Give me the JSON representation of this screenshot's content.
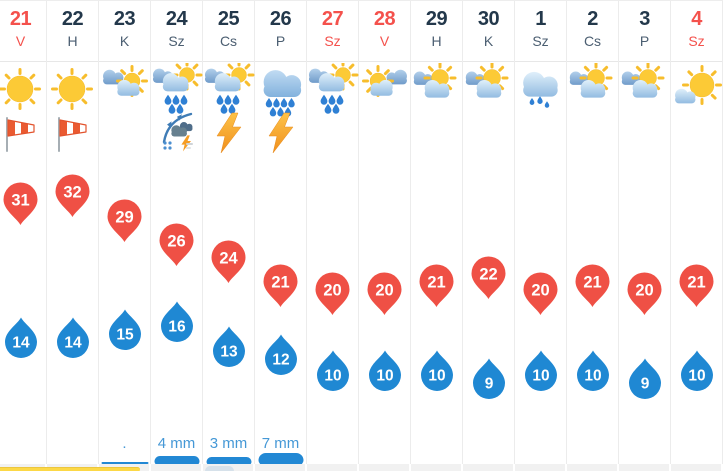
{
  "colors": {
    "accent_red": "#f4514c",
    "pin_red": "#ef5045",
    "pin_blue": "#1f88d3",
    "date_dark": "#23384b",
    "dow_grey": "#4b5e71",
    "precip_label_blue": "#4598d6",
    "precip_bar_blue": "#2288d4",
    "separator": "#ececec",
    "strip_grey": "#f1f1f1",
    "sunshine_bar_yellow": "#fcd846"
  },
  "days": [
    {
      "date": "21",
      "dow": "V",
      "weekend": true,
      "icon": "sunny",
      "icon2": "windsock",
      "tmax": 31,
      "tmin": 14,
      "precip": null
    },
    {
      "date": "22",
      "dow": "H",
      "weekend": false,
      "icon": "sunny",
      "icon2": "windsock",
      "tmax": 32,
      "tmin": 14,
      "precip": null
    },
    {
      "date": "23",
      "dow": "K",
      "weekend": false,
      "icon": "sun-behind-clouds",
      "icon2": null,
      "tmax": 29,
      "tmin": 15,
      "precip": {
        "label": ".",
        "mm": 0.1
      }
    },
    {
      "date": "24",
      "dow": "Sz",
      "weekend": false,
      "icon": "rain-showers-sun",
      "icon2": "cold-front",
      "tmax": 26,
      "tmin": 16,
      "precip": {
        "label": "4 mm",
        "mm": 4
      }
    },
    {
      "date": "25",
      "dow": "Cs",
      "weekend": false,
      "icon": "rain-showers-sun",
      "icon2": "lightning",
      "tmax": 24,
      "tmin": 13,
      "precip": {
        "label": "3 mm",
        "mm": 3
      }
    },
    {
      "date": "26",
      "dow": "P",
      "weekend": false,
      "icon": "rain-heavy",
      "icon2": "lightning",
      "tmax": 21,
      "tmin": 12,
      "precip": {
        "label": "7 mm",
        "mm": 7
      }
    },
    {
      "date": "27",
      "dow": "Sz",
      "weekend": true,
      "icon": "rain-showers-sun",
      "icon2": null,
      "tmax": 20,
      "tmin": 10,
      "precip": null
    },
    {
      "date": "28",
      "dow": "V",
      "weekend": true,
      "icon": "sun-between-clouds",
      "icon2": null,
      "tmax": 20,
      "tmin": 10,
      "precip": null
    },
    {
      "date": "29",
      "dow": "H",
      "weekend": false,
      "icon": "partly-cloudy",
      "icon2": null,
      "tmax": 21,
      "tmin": 10,
      "precip": null
    },
    {
      "date": "30",
      "dow": "K",
      "weekend": false,
      "icon": "partly-cloudy",
      "icon2": null,
      "tmax": 22,
      "tmin": 9,
      "precip": null
    },
    {
      "date": "1",
      "dow": "Sz",
      "weekend": false,
      "icon": "drizzle",
      "icon2": null,
      "tmax": 20,
      "tmin": 10,
      "precip": null
    },
    {
      "date": "2",
      "dow": "Cs",
      "weekend": false,
      "icon": "partly-cloudy",
      "icon2": null,
      "tmax": 21,
      "tmin": 10,
      "precip": null
    },
    {
      "date": "3",
      "dow": "P",
      "weekend": false,
      "icon": "partly-cloudy",
      "icon2": null,
      "tmax": 20,
      "tmin": 9,
      "precip": null
    },
    {
      "date": "4",
      "dow": "Sz",
      "weekend": true,
      "icon": "sun-small-cloud",
      "icon2": null,
      "tmax": 21,
      "tmin": 10,
      "precip": null
    }
  ]
}
